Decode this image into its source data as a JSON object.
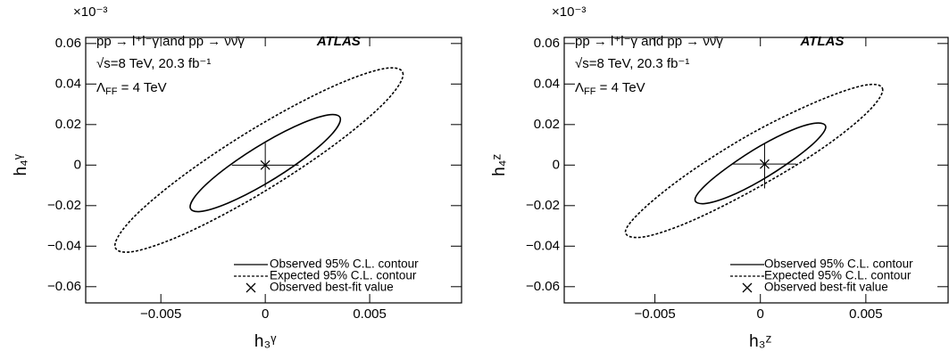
{
  "chart_data": [
    {
      "type": "contour",
      "multiplier": "×10⁻³",
      "xlabel": "h₃ᵞ",
      "ylabel": "h₄ᵞ",
      "annotations": [
        "pp → l⁺l⁻γ and pp → νν̄γ",
        "√s=8 TeV, 20.3 fb⁻¹"
      ],
      "lambda_label": [
        "Λ",
        "FF",
        " = 4 TeV"
      ],
      "experiment": "ATLAS",
      "xlim": [
        -0.0086,
        0.0094
      ],
      "ylim": [
        -0.068,
        0.063
      ],
      "xticks": [
        {
          "value": -0.005,
          "label": "−0.005"
        },
        0,
        0.005
      ],
      "yticks": [
        {
          "value": -0.06,
          "label": "−0.06"
        },
        {
          "value": -0.04,
          "label": "−0.04"
        },
        {
          "value": -0.02,
          "label": "−0.02"
        },
        0,
        0.02,
        0.04,
        0.06
      ],
      "series": [
        {
          "name": "Observed 95% C.L. contour",
          "style": "solid",
          "x": [
            0.0036,
            0.00312,
            0.0018,
            0,
            -0.0018,
            -0.00312,
            -0.0036,
            -0.00312,
            -0.0018,
            0,
            0.0018,
            0.00312
          ],
          "y": [
            0.0226,
            0.0249,
            0.0208,
            0.0114,
            -0.0008,
            -0.0125,
            -0.0206,
            -0.0229,
            -0.0188,
            -0.0094,
            0.0028,
            0.0145
          ]
        },
        {
          "name": "Expected 95% C.L. contour",
          "style": "dashed",
          "x": [
            0.0066,
            0.00568,
            0.00315,
            -0.0003,
            -0.00375,
            -0.00628,
            -0.0072,
            -0.00628,
            -0.00375,
            -0.0003,
            0.00315,
            0.00568
          ],
          "y": [
            0.0447,
            0.0476,
            0.0384,
            0.0196,
            -0.0038,
            -0.0255,
            -0.0397,
            -0.0426,
            -0.0334,
            -0.0146,
            0.0088,
            0.0305
          ]
        }
      ],
      "best_fit": {
        "name": "Observed best-fit value",
        "x": 0,
        "y": 0,
        "x_err": 0.0016,
        "y_err_up": 0.011,
        "y_err_down": 0.011
      }
    },
    {
      "type": "contour",
      "multiplier": "×10⁻³",
      "xlabel": "h₃ᶻ",
      "ylabel": "h₄ᶻ",
      "annotations": [
        "pp → l⁺l⁻γ and pp → νν̄γ",
        "√s=8 TeV, 20.3 fb⁻¹"
      ],
      "lambda_label": [
        "Λ",
        "FF",
        " = 4 TeV"
      ],
      "experiment": "ATLAS",
      "xlim": [
        -0.0093,
        0.0089
      ],
      "ylim": [
        -0.068,
        0.063
      ],
      "xticks": [
        {
          "value": -0.005,
          "label": "−0.005"
        },
        0,
        0.005
      ],
      "yticks": [
        {
          "value": -0.06,
          "label": "−0.06"
        },
        {
          "value": -0.04,
          "label": "−0.04"
        },
        {
          "value": -0.02,
          "label": "−0.02"
        },
        0,
        0.02,
        0.04,
        0.06
      ],
      "series": [
        {
          "name": "Observed 95% C.L. contour",
          "style": "solid",
          "x": [
            0.0031,
            0.00265,
            0.0015,
            0,
            -0.0015,
            -0.00265,
            -0.0031,
            -0.00265,
            -0.0015,
            0,
            0.0015,
            0.00265
          ],
          "y": [
            0.0188,
            0.0207,
            0.0173,
            0.0095,
            -0.0007,
            -0.0104,
            -0.0171,
            -0.019,
            -0.0156,
            -0.0078,
            0.0023,
            0.012
          ]
        },
        {
          "name": "Expected 95% C.L. contour",
          "style": "dashed",
          "x": [
            0.0058,
            0.005,
            0.0028,
            -0.0003,
            -0.0033,
            -0.0055,
            -0.0064,
            -0.0055,
            -0.0033,
            -0.0003,
            0.0028,
            0.005
          ],
          "y": [
            0.0371,
            0.0395,
            0.0319,
            0.0163,
            -0.0032,
            -0.0212,
            -0.033,
            -0.0354,
            -0.0277,
            -0.0121,
            0.0073,
            0.0253
          ]
        }
      ],
      "best_fit": {
        "name": "Observed best-fit value",
        "x": 0.0002,
        "y": 0.0005,
        "x_err": 0.0015,
        "y_err_up": 0.01,
        "y_err_down": 0.012
      }
    }
  ]
}
